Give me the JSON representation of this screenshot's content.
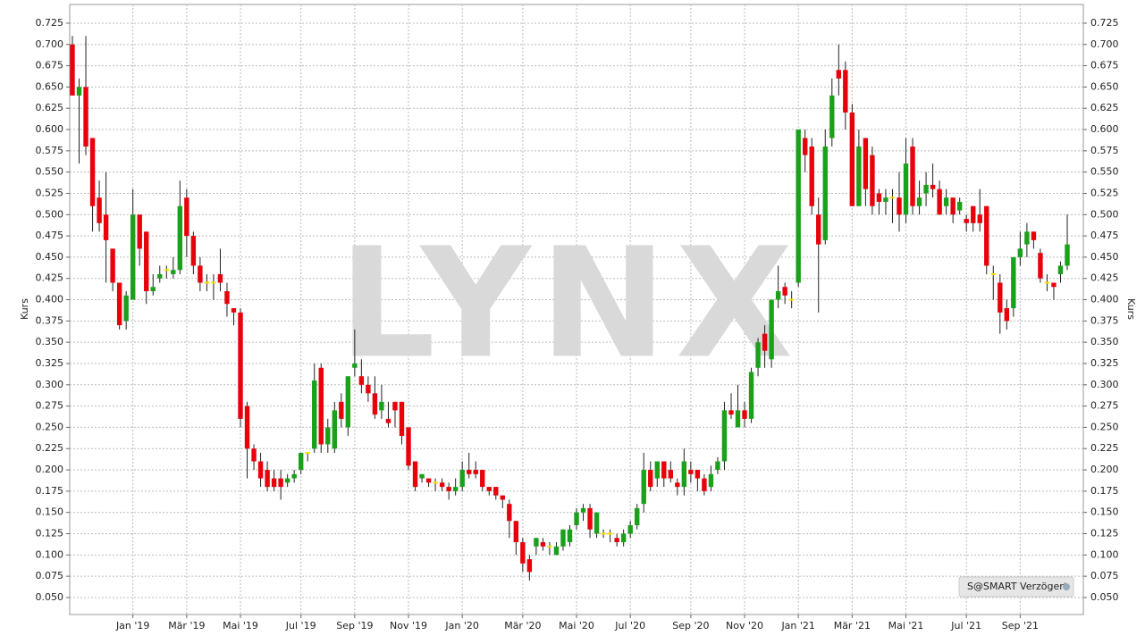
{
  "chart_data": {
    "type": "candlestick",
    "watermark": "LYNX",
    "badge": "S@SMART Verzögert",
    "ylabel": "Kurs",
    "up_color": "#1aa01a",
    "down_color": "#e8000b",
    "doji_color": "#f5e000",
    "ylim": [
      0.03,
      0.747
    ],
    "yticks": [
      {
        "value": 0.05,
        "label": "0.050"
      },
      0.075,
      {
        "value": 0.1,
        "label": "0.100"
      },
      0.125,
      {
        "value": 0.15,
        "label": "0.150"
      },
      0.175,
      {
        "value": 0.2,
        "label": "0.200"
      },
      0.225,
      {
        "value": 0.25,
        "label": "0.250"
      },
      0.275,
      {
        "value": 0.3,
        "label": "0.300"
      },
      0.325,
      {
        "value": 0.35,
        "label": "0.350"
      },
      0.375,
      {
        "value": 0.4,
        "label": "0.400"
      },
      0.425,
      {
        "value": 0.45,
        "label": "0.450"
      },
      0.475,
      {
        "value": 0.5,
        "label": "0.500"
      },
      0.525,
      {
        "value": 0.55,
        "label": "0.550"
      },
      0.575,
      {
        "value": 0.6,
        "label": "0.600"
      },
      0.625,
      {
        "value": 0.65,
        "label": "0.650"
      },
      0.675,
      {
        "value": 0.7,
        "label": "0.700"
      },
      0.725
    ],
    "grid": true,
    "categories": [
      null,
      null,
      null,
      null,
      null,
      null,
      null,
      null,
      null,
      "Jan '19",
      null,
      null,
      null,
      null,
      null,
      null,
      null,
      "Mär '19",
      null,
      null,
      null,
      null,
      null,
      null,
      null,
      "Mai '19",
      null,
      null,
      null,
      null,
      null,
      null,
      null,
      null,
      "Jul '19",
      null,
      null,
      null,
      null,
      null,
      null,
      null,
      "Sep '19",
      null,
      null,
      null,
      null,
      null,
      null,
      null,
      "Nov '19",
      null,
      null,
      null,
      null,
      null,
      null,
      null,
      "Jan '20",
      null,
      null,
      null,
      null,
      null,
      null,
      null,
      null,
      "Mär '20",
      null,
      null,
      null,
      null,
      null,
      null,
      null,
      "Mai '20",
      null,
      null,
      null,
      null,
      null,
      null,
      null,
      "Jul '20",
      null,
      null,
      null,
      null,
      null,
      null,
      null,
      null,
      "Sep '20",
      null,
      null,
      null,
      null,
      null,
      null,
      null,
      "Nov '20",
      null,
      null,
      null,
      null,
      null,
      null,
      null,
      "Jan '21",
      null,
      null,
      null,
      null,
      null,
      null,
      null,
      "Mär '21",
      null,
      null,
      null,
      null,
      null,
      null,
      null,
      "Mai '21",
      null,
      null,
      null,
      null,
      null,
      null,
      null,
      null,
      "Jul '21",
      null,
      null,
      null,
      null,
      null,
      null,
      null,
      "Sep '21",
      null,
      null,
      null,
      null,
      null,
      null,
      null
    ],
    "open": [
      0.7,
      0.64,
      0.65,
      0.59,
      0.52,
      0.5,
      0.46,
      0.42,
      0.375,
      0.4,
      0.5,
      0.48,
      0.41,
      0.425,
      0.435,
      0.43,
      0.435,
      0.52,
      0.475,
      0.44,
      0.42,
      0.42,
      0.43,
      0.41,
      0.39,
      0.385,
      0.275,
      0.225,
      0.21,
      0.2,
      0.19,
      0.19,
      0.185,
      0.19,
      0.2,
      0.22,
      0.225,
      0.32,
      0.23,
      0.225,
      0.28,
      0.25,
      0.32,
      0.31,
      0.3,
      0.29,
      0.27,
      0.26,
      0.28,
      0.28,
      0.25,
      0.21,
      0.19,
      0.19,
      0.185,
      0.185,
      0.18,
      0.175,
      0.18,
      0.2,
      0.2,
      0.2,
      0.18,
      0.18,
      0.17,
      0.16,
      0.14,
      0.115,
      0.095,
      0.11,
      0.115,
      0.11,
      0.1,
      0.11,
      0.115,
      0.135,
      0.15,
      0.155,
      0.125,
      0.125,
      0.125,
      0.12,
      0.115,
      0.125,
      0.135,
      0.16,
      0.2,
      0.19,
      0.21,
      0.2,
      0.185,
      0.18,
      0.2,
      0.2,
      0.19,
      0.18,
      0.2,
      0.21,
      0.27,
      0.25,
      0.27,
      0.26,
      0.32,
      0.36,
      0.33,
      0.4,
      0.415,
      0.4,
      0.42,
      0.59,
      0.58,
      0.5,
      0.47,
      0.59,
      0.67,
      0.67,
      0.62,
      0.51,
      0.59,
      0.57,
      0.525,
      0.515,
      0.52,
      0.52,
      0.5,
      0.58,
      0.51,
      0.525,
      0.535,
      0.53,
      0.51,
      0.52,
      0.505,
      0.495,
      0.51,
      0.5,
      0.51,
      0.43,
      0.42,
      0.39,
      0.39,
      0.45,
      0.465,
      0.48,
      0.455,
      0.42,
      0.42,
      0.43,
      0.44
    ],
    "high": [
      0.71,
      0.66,
      0.71,
      0.59,
      0.54,
      0.55,
      0.46,
      0.42,
      0.41,
      0.53,
      0.5,
      0.48,
      0.43,
      0.44,
      0.44,
      0.45,
      0.54,
      0.53,
      0.48,
      0.45,
      0.43,
      0.43,
      0.46,
      0.42,
      0.39,
      0.39,
      0.28,
      0.23,
      0.22,
      0.21,
      0.2,
      0.2,
      0.195,
      0.2,
      0.22,
      0.22,
      0.325,
      0.325,
      0.26,
      0.28,
      0.29,
      0.31,
      0.365,
      0.33,
      0.31,
      0.31,
      0.3,
      0.28,
      0.28,
      0.28,
      0.25,
      0.21,
      0.195,
      0.19,
      0.19,
      0.19,
      0.185,
      0.19,
      0.21,
      0.22,
      0.21,
      0.2,
      0.18,
      0.18,
      0.17,
      0.165,
      0.14,
      0.12,
      0.1,
      0.12,
      0.12,
      0.115,
      0.115,
      0.13,
      0.135,
      0.155,
      0.16,
      0.16,
      0.15,
      0.13,
      0.13,
      0.125,
      0.13,
      0.14,
      0.16,
      0.22,
      0.21,
      0.21,
      0.21,
      0.21,
      0.19,
      0.225,
      0.21,
      0.2,
      0.195,
      0.205,
      0.215,
      0.28,
      0.29,
      0.3,
      0.28,
      0.32,
      0.355,
      0.37,
      0.4,
      0.44,
      0.42,
      0.41,
      0.6,
      0.6,
      0.59,
      0.52,
      0.6,
      0.66,
      0.7,
      0.68,
      0.63,
      0.6,
      0.59,
      0.58,
      0.53,
      0.53,
      0.53,
      0.55,
      0.59,
      0.59,
      0.54,
      0.55,
      0.56,
      0.54,
      0.53,
      0.52,
      0.52,
      0.5,
      0.51,
      0.53,
      0.51,
      0.44,
      0.43,
      0.4,
      0.45,
      0.48,
      0.49,
      0.48,
      0.46,
      0.43,
      0.42,
      0.445,
      0.5
    ],
    "low": [
      0.64,
      0.56,
      0.57,
      0.48,
      0.48,
      0.42,
      0.41,
      0.365,
      0.365,
      0.4,
      0.44,
      0.395,
      0.405,
      0.42,
      0.425,
      0.425,
      0.43,
      0.45,
      0.43,
      0.41,
      0.41,
      0.4,
      0.41,
      0.38,
      0.37,
      0.25,
      0.19,
      0.2,
      0.18,
      0.175,
      0.175,
      0.165,
      0.18,
      0.185,
      0.195,
      0.21,
      0.22,
      0.22,
      0.22,
      0.22,
      0.25,
      0.24,
      0.31,
      0.29,
      0.28,
      0.26,
      0.26,
      0.25,
      0.25,
      0.23,
      0.2,
      0.175,
      0.185,
      0.18,
      0.175,
      0.175,
      0.165,
      0.17,
      0.175,
      0.19,
      0.19,
      0.175,
      0.17,
      0.165,
      0.155,
      0.12,
      0.1,
      0.08,
      0.07,
      0.1,
      0.105,
      0.1,
      0.1,
      0.105,
      0.11,
      0.13,
      0.14,
      0.12,
      0.12,
      0.12,
      0.115,
      0.11,
      0.11,
      0.12,
      0.13,
      0.15,
      0.175,
      0.18,
      0.18,
      0.185,
      0.17,
      0.17,
      0.185,
      0.175,
      0.17,
      0.175,
      0.195,
      0.2,
      0.26,
      0.25,
      0.25,
      0.255,
      0.31,
      0.32,
      0.32,
      0.39,
      0.395,
      0.39,
      0.415,
      0.55,
      0.5,
      0.385,
      0.465,
      0.58,
      0.64,
      0.6,
      0.51,
      0.51,
      0.51,
      0.5,
      0.5,
      0.5,
      0.49,
      0.48,
      0.49,
      0.5,
      0.5,
      0.51,
      0.52,
      0.5,
      0.5,
      0.49,
      0.5,
      0.48,
      0.48,
      0.48,
      0.43,
      0.4,
      0.36,
      0.365,
      0.38,
      0.44,
      0.45,
      0.46,
      0.42,
      0.41,
      0.4,
      0.42,
      0.435
    ],
    "close": [
      0.64,
      0.65,
      0.58,
      0.51,
      0.49,
      0.47,
      0.42,
      0.37,
      0.405,
      0.5,
      0.46,
      0.41,
      0.415,
      0.43,
      0.435,
      0.435,
      0.51,
      0.475,
      0.44,
      0.42,
      0.42,
      0.42,
      0.42,
      0.395,
      0.385,
      0.26,
      0.225,
      0.21,
      0.19,
      0.18,
      0.18,
      0.18,
      0.19,
      0.195,
      0.22,
      0.22,
      0.305,
      0.23,
      0.25,
      0.27,
      0.26,
      0.31,
      0.325,
      0.3,
      0.29,
      0.265,
      0.28,
      0.255,
      0.27,
      0.24,
      0.205,
      0.18,
      0.195,
      0.185,
      0.185,
      0.18,
      0.175,
      0.18,
      0.2,
      0.195,
      0.195,
      0.18,
      0.175,
      0.17,
      0.165,
      0.14,
      0.115,
      0.09,
      0.08,
      0.12,
      0.11,
      0.11,
      0.11,
      0.13,
      0.13,
      0.15,
      0.155,
      0.13,
      0.15,
      0.125,
      0.125,
      0.115,
      0.125,
      0.135,
      0.155,
      0.2,
      0.18,
      0.21,
      0.19,
      0.19,
      0.18,
      0.21,
      0.195,
      0.19,
      0.175,
      0.195,
      0.21,
      0.27,
      0.265,
      0.27,
      0.26,
      0.315,
      0.35,
      0.34,
      0.4,
      0.41,
      0.405,
      0.4,
      0.6,
      0.57,
      0.51,
      0.465,
      0.58,
      0.64,
      0.66,
      0.62,
      0.51,
      0.58,
      0.53,
      0.51,
      0.515,
      0.52,
      0.52,
      0.5,
      0.56,
      0.51,
      0.52,
      0.535,
      0.53,
      0.5,
      0.52,
      0.5,
      0.515,
      0.49,
      0.49,
      0.49,
      0.44,
      0.43,
      0.385,
      0.375,
      0.45,
      0.46,
      0.48,
      0.47,
      0.425,
      0.42,
      0.415,
      0.44,
      0.465
    ]
  }
}
